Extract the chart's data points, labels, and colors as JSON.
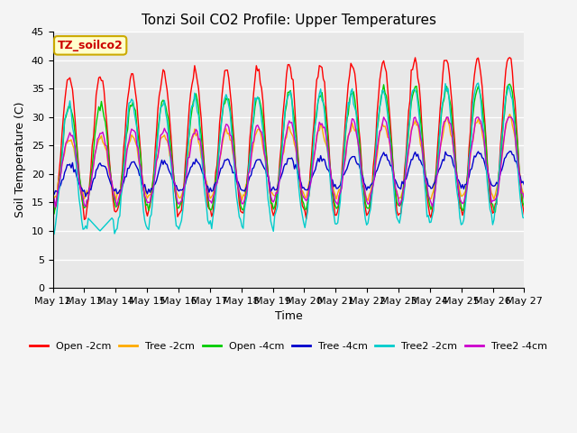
{
  "title": "Tonzi Soil CO2 Profile: Upper Temperatures",
  "xlabel": "Time",
  "ylabel": "Soil Temperature (C)",
  "ylim": [
    0,
    45
  ],
  "yticks": [
    0,
    5,
    10,
    15,
    20,
    25,
    30,
    35,
    40,
    45
  ],
  "xtick_labels": [
    "May 12",
    "May 13",
    "May 14",
    "May 15",
    "May 16",
    "May 17",
    "May 18",
    "May 19",
    "May 20",
    "May 21",
    "May 22",
    "May 23",
    "May 24",
    "May 25",
    "May 26",
    "May 27"
  ],
  "annotation_text": "TZ_soilco2",
  "annotation_box_color": "#ffffcc",
  "annotation_box_edge": "#ccaa00",
  "annotation_text_color": "#cc0000",
  "series_colors": {
    "Open -2cm": "#ff0000",
    "Tree -2cm": "#ffaa00",
    "Open -4cm": "#00cc00",
    "Tree -4cm": "#0000cc",
    "Tree2 -2cm": "#00cccc",
    "Tree2 -4cm": "#cc00cc"
  },
  "plot_bg_color": "#e8e8e8",
  "grid_color": "#ffffff",
  "title_fontsize": 11,
  "axis_label_fontsize": 9,
  "tick_label_fontsize": 8,
  "legend_fontsize": 8
}
